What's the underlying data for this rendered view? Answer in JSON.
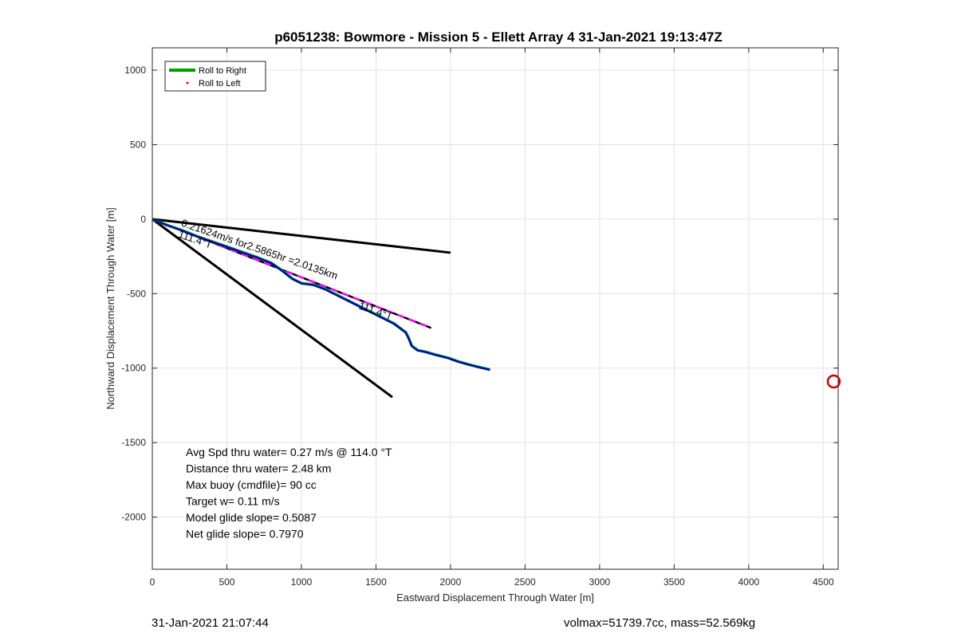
{
  "chart_data": {
    "type": "line",
    "title": "p6051238: Bowmore - Mission 5 - Ellett Array 4 31-Jan-2021 19:13:47Z",
    "xlabel": "Eastward Displacement Through Water [m]",
    "ylabel": "Northward Displacement Through Water [m]",
    "xlim": [
      0,
      4600
    ],
    "ylim": [
      -2350,
      1150
    ],
    "xticks": [
      0,
      500,
      1000,
      1500,
      2000,
      2500,
      3000,
      3500,
      4000,
      4500
    ],
    "yticks": [
      -2000,
      -1500,
      -1000,
      -500,
      0,
      500,
      1000
    ],
    "grid": true,
    "legend": {
      "placement": "top-left",
      "entries": [
        "Roll to Right",
        "Roll to Left"
      ]
    },
    "series": [
      {
        "name": "Roll to Right",
        "color": "#00a000",
        "points": [
          [
            0,
            0
          ],
          [
            100,
            -40
          ],
          [
            200,
            -75
          ],
          [
            300,
            -115
          ],
          [
            400,
            -150
          ],
          [
            500,
            -185
          ],
          [
            600,
            -220
          ],
          [
            700,
            -255
          ],
          [
            800,
            -295
          ],
          [
            870,
            -345
          ],
          [
            940,
            -400
          ],
          [
            1000,
            -430
          ],
          [
            1080,
            -440
          ],
          [
            1160,
            -470
          ],
          [
            1240,
            -510
          ],
          [
            1320,
            -550
          ],
          [
            1400,
            -590
          ],
          [
            1480,
            -630
          ],
          [
            1560,
            -670
          ],
          [
            1620,
            -700
          ],
          [
            1700,
            -760
          ],
          [
            1720,
            -800
          ],
          [
            1740,
            -850
          ],
          [
            1780,
            -880
          ],
          [
            1830,
            -890
          ],
          [
            1900,
            -910
          ],
          [
            1980,
            -930
          ],
          [
            2050,
            -955
          ],
          [
            2120,
            -975
          ],
          [
            2200,
            -995
          ],
          [
            2265,
            -1010
          ]
        ]
      },
      {
        "name": "Roll to Left",
        "color": "#0000cc",
        "points": [
          [
            0,
            0
          ],
          [
            100,
            -42
          ],
          [
            200,
            -77
          ],
          [
            300,
            -117
          ],
          [
            400,
            -152
          ],
          [
            500,
            -187
          ],
          [
            600,
            -222
          ],
          [
            700,
            -257
          ],
          [
            800,
            -297
          ],
          [
            870,
            -347
          ],
          [
            940,
            -402
          ],
          [
            1000,
            -432
          ],
          [
            1080,
            -442
          ],
          [
            1160,
            -472
          ],
          [
            1240,
            -512
          ],
          [
            1320,
            -552
          ],
          [
            1400,
            -592
          ],
          [
            1480,
            -632
          ],
          [
            1560,
            -672
          ],
          [
            1620,
            -702
          ],
          [
            1700,
            -762
          ],
          [
            1720,
            -802
          ],
          [
            1740,
            -852
          ],
          [
            1780,
            -882
          ],
          [
            1830,
            -892
          ],
          [
            1900,
            -912
          ],
          [
            1980,
            -932
          ],
          [
            2050,
            -957
          ],
          [
            2120,
            -977
          ],
          [
            2200,
            -997
          ],
          [
            2265,
            -1012
          ]
        ]
      }
    ],
    "reference_lines": [
      {
        "color": "#000000",
        "from": [
          0,
          0
        ],
        "to": [
          2000,
          -225
        ]
      },
      {
        "color": "#000000",
        "from": [
          0,
          0
        ],
        "to": [
          1610,
          -1195
        ]
      },
      {
        "color": "#ff00ff",
        "style": "dashed",
        "from": [
          0,
          0
        ],
        "to": [
          1870,
          -730
        ]
      }
    ],
    "marker": {
      "color": "#cc0000",
      "shape": "circle",
      "x": 4570,
      "y": -1090
    },
    "annotations": [
      {
        "text": "0.21624m/s for2.5865hr =2.0135km",
        "x": 190,
        "y": -45,
        "angle": 19
      },
      {
        "text": "111.4°T",
        "x": 170,
        "y": -120,
        "angle": 19
      },
      {
        "text": "111.4°T",
        "x": 1380,
        "y": -600,
        "angle": 19
      }
    ],
    "stats": [
      "Avg Spd thru water=  0.27 m/s @ 114.0 °T",
      "Distance thru water=  2.48 km",
      "Max buoy (cmdfile)= 90 cc",
      "Target w= 0.11 m/s",
      "Model glide slope= 0.5087",
      "Net glide slope= 0.7970"
    ]
  },
  "footer": {
    "timestamp": "31-Jan-2021 21:07:44",
    "info": "volmax=51739.7cc, mass=52.569kg"
  }
}
